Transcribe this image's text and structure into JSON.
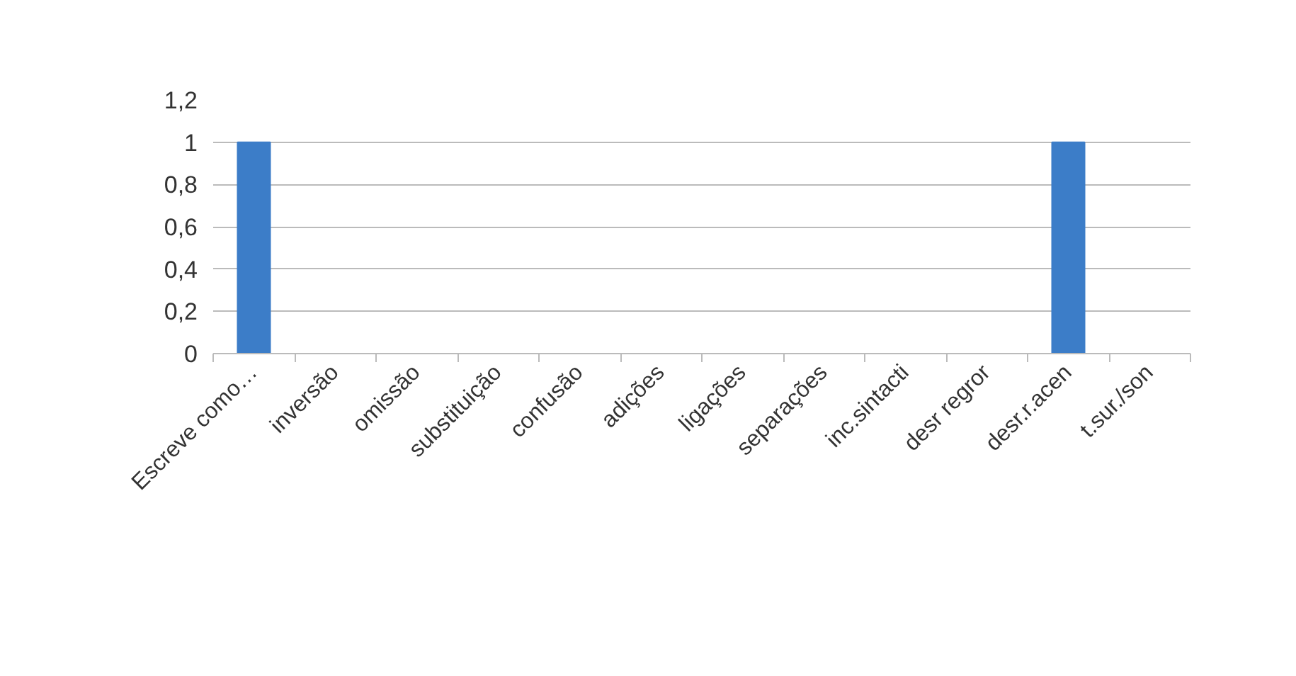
{
  "chart_data": {
    "type": "bar",
    "categories": [
      "Escreve como…",
      "inversão",
      "omissão",
      "substituição",
      "confusão",
      "adições",
      "ligações",
      "separações",
      "inc.sintacti",
      "desr regror",
      "desr.r.acen",
      "t.sur./son"
    ],
    "values": [
      1,
      0,
      0,
      0,
      0,
      0,
      0,
      0,
      0,
      0,
      1,
      0
    ],
    "color": "#3c7dc8",
    "ylim": [
      0,
      1.2
    ],
    "yticks": [
      0,
      {
        "value": 0.2,
        "label": "0,2"
      },
      {
        "value": 0.4,
        "label": "0,4"
      },
      {
        "value": 0.6,
        "label": "0,6"
      },
      {
        "value": 0.8,
        "label": "0,8"
      },
      1,
      {
        "value": 1.2,
        "label": "1,2"
      }
    ],
    "grid": "y"
  }
}
